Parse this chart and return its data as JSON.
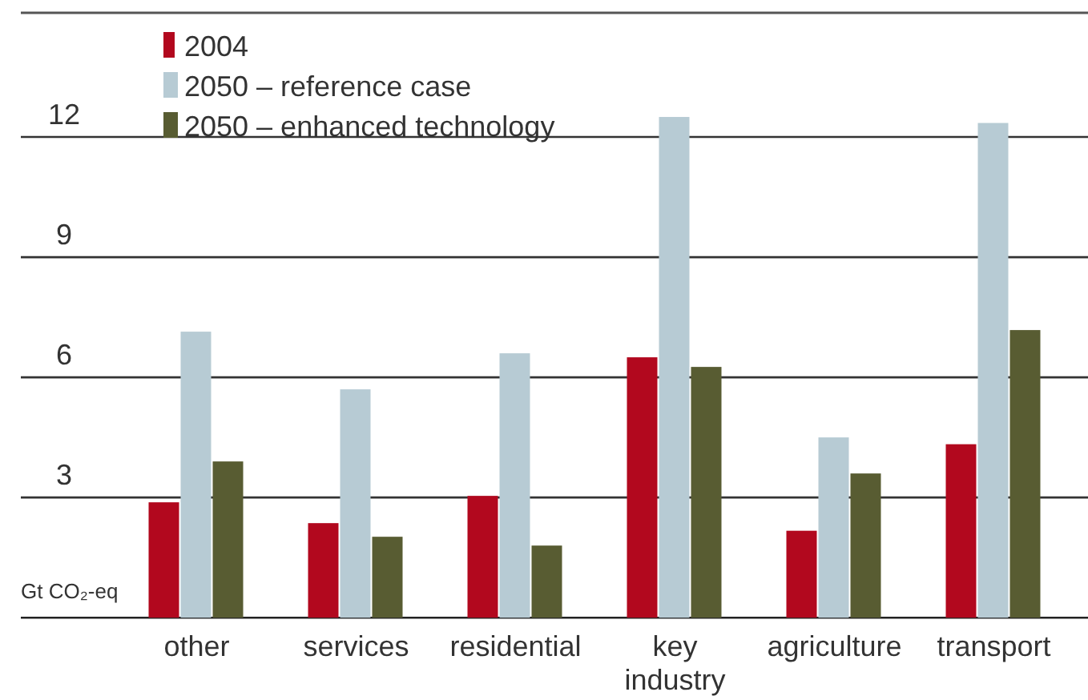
{
  "chart_data": {
    "type": "bar",
    "ylabel": "Gt CO₂-eq",
    "categories": [
      "other",
      "services",
      "residential",
      "key\nindustry",
      "agriculture",
      "transport"
    ],
    "series": [
      {
        "name": "2004",
        "color": "#b2081e",
        "values": [
          2.88,
          2.36,
          3.04,
          6.5,
          2.17,
          4.33
        ]
      },
      {
        "name": "2050 – reference case",
        "color": "#b7cbd4",
        "values": [
          7.14,
          5.7,
          6.6,
          12.5,
          4.5,
          12.35
        ]
      },
      {
        "name": "2050 – enhanced technology",
        "color": "#585c32",
        "values": [
          3.9,
          2.02,
          1.8,
          6.26,
          3.6,
          7.18
        ]
      }
    ],
    "ylim": [
      0,
      15.1
    ],
    "yticks": [
      {
        "value": 0,
        "label": null
      },
      3,
      6,
      9,
      12
    ],
    "grid": "y",
    "legend": "top left"
  }
}
